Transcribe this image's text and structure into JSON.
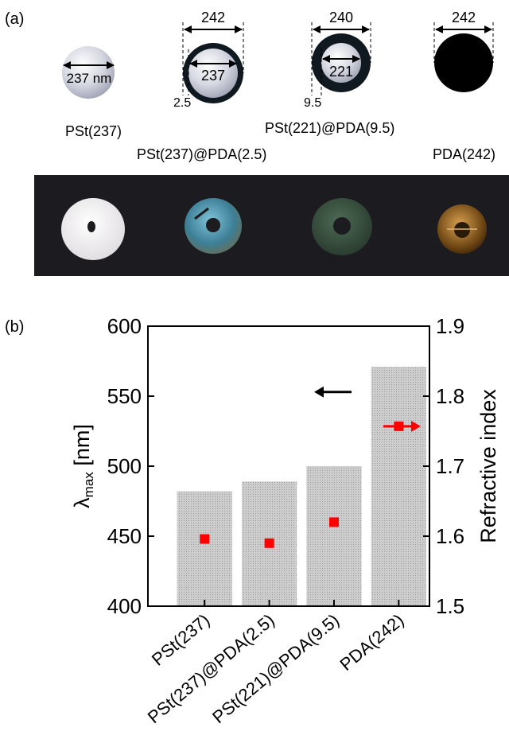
{
  "panel_a": {
    "label": "(a)",
    "particles": [
      {
        "name": "PSt(237)",
        "inner_label": "237 nm",
        "shell": "none"
      },
      {
        "name": "PSt(237)@PDA(2.5)",
        "outer_label": "242",
        "inner_label": "237",
        "shell_label": "2.5",
        "shell": "thin"
      },
      {
        "name": "PSt(221)@PDA(9.5)",
        "outer_label": "240",
        "inner_label": "221",
        "shell_label": "9.5",
        "shell": "thick"
      },
      {
        "name": "PDA(242)",
        "outer_label": "242",
        "shell": "solid"
      }
    ],
    "photo_disc_colors": [
      "#f4f2f2",
      "#3d7f96",
      "#33493a",
      "#6b4312"
    ],
    "photo_background": "#1c1b1f"
  },
  "panel_b": {
    "label": "(b)"
  },
  "chart_data": {
    "type": "bar",
    "categories": [
      "PSt(237)",
      "PSt(237)@PDA(2.5)",
      "PSt(221)@PDA(9.5)",
      "PDA(242)"
    ],
    "series": [
      {
        "axis": "left",
        "mark": "bar",
        "values": [
          482,
          489,
          500,
          571
        ],
        "color": "#c8c8c8"
      },
      {
        "axis": "right",
        "mark": "square",
        "values": [
          1.596,
          1.59,
          1.62,
          1.757
        ],
        "color": "#ff0000"
      }
    ],
    "ylabel": "λmax [nm]",
    "ylabel_main": "λ",
    "ylabel_sub": "max",
    "ylabel_unit": " [nm]",
    "y2label": "Refractive index",
    "ylim": [
      400,
      600
    ],
    "y2lim": [
      1.5,
      1.9
    ],
    "yticks": [
      "400",
      "450",
      "500",
      "550",
      "600"
    ],
    "y2ticks": [
      "1.5",
      "1.6",
      "1.7",
      "1.8",
      "1.9"
    ],
    "left_arrow_color": "#000000",
    "right_arrow_color": "#ff0000"
  }
}
